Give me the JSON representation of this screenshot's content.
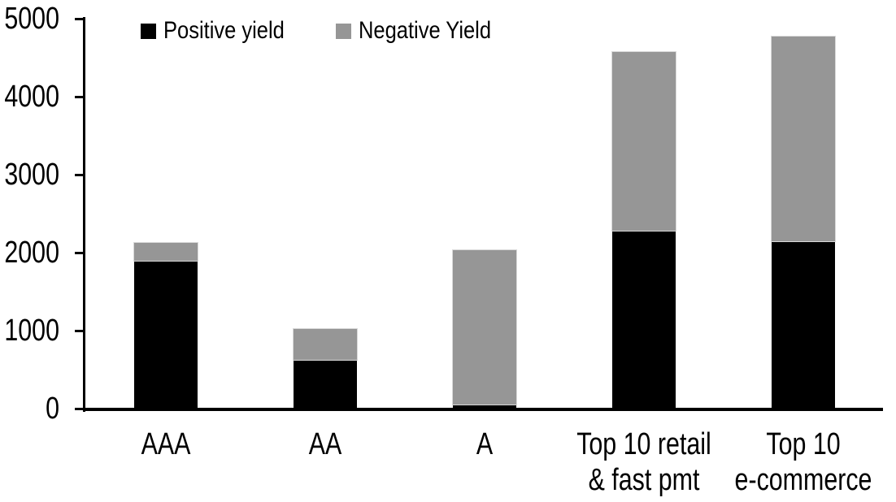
{
  "chart_data": {
    "type": "bar",
    "stacked": true,
    "title": "",
    "xlabel": "",
    "ylabel": "",
    "categories": [
      "AAA",
      "AA",
      "A",
      "Top 10 retail\n& fast pmt",
      "Top 10\ne-commerce"
    ],
    "series": [
      {
        "name": "Positive yield",
        "color": "#000000",
        "values": [
          1900,
          630,
          50,
          2280,
          2150
        ]
      },
      {
        "name": "Negative Yield",
        "color": "#969696",
        "values": [
          230,
          390,
          1980,
          2290,
          2620
        ]
      }
    ],
    "totals": [
      2130,
      1020,
      2030,
      4570,
      4770
    ],
    "ylim": [
      0,
      5000
    ],
    "yticks": [
      0,
      1000,
      2000,
      3000,
      4000,
      5000
    ],
    "legend_position": "top",
    "grid": false,
    "axis_color": "#000000",
    "background": "#ffffff"
  }
}
